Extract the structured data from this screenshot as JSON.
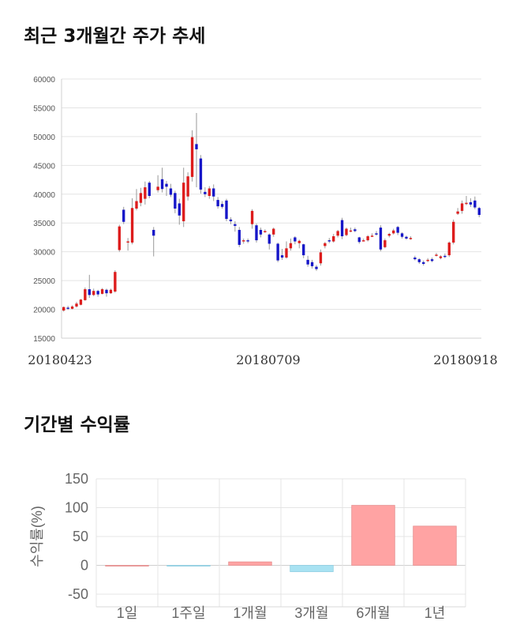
{
  "section1": {
    "title": "최근 3개월간 주가 추세"
  },
  "section2": {
    "title": "기간별 수익률"
  },
  "colors": {
    "up": "#dd1c1c",
    "down": "#1616c8",
    "pos_bar": "#ffa3a3",
    "neg_bar": "#a8e2f2",
    "grid": "#e4e4e4"
  },
  "chart_data": [
    {
      "type": "candlestick",
      "title": "최근 3개월간 주가 추세",
      "ylim": [
        15000,
        60000
      ],
      "y_ticks": [
        "60000",
        "55000",
        "50000",
        "45000",
        "40000",
        "35000",
        "30000",
        "25000",
        "20000",
        "15000"
      ],
      "x_ticks": [
        "20180423",
        "20180709",
        "20180918"
      ],
      "grid": true,
      "candles": [
        [
          19800,
          20400,
          19600,
          20500
        ],
        [
          20300,
          20200,
          19900,
          20600
        ],
        [
          20100,
          20500,
          20000,
          20700
        ],
        [
          20500,
          21000,
          20300,
          21300
        ],
        [
          20800,
          21700,
          20700,
          21800
        ],
        [
          21600,
          23500,
          21500,
          23800
        ],
        [
          23500,
          22500,
          22000,
          26000
        ],
        [
          22500,
          23200,
          22300,
          23600
        ],
        [
          23200,
          22600,
          22200,
          23400
        ],
        [
          22700,
          23500,
          22600,
          23700
        ],
        [
          23400,
          22800,
          22200,
          23600
        ],
        [
          22800,
          23400,
          22700,
          23600
        ],
        [
          23100,
          26500,
          22900,
          26800
        ],
        [
          30300,
          34400,
          30000,
          34700
        ],
        [
          37300,
          35200,
          34800,
          37800
        ],
        [
          31600,
          31800,
          30200,
          32400
        ],
        [
          31600,
          37600,
          31300,
          39300
        ],
        [
          37500,
          38800,
          37200,
          40900
        ],
        [
          38500,
          40200,
          37900,
          41100
        ],
        [
          39200,
          41200,
          38200,
          42200
        ],
        [
          42000,
          39700,
          39300,
          42300
        ],
        [
          33800,
          32800,
          29200,
          34300
        ],
        [
          40700,
          41300,
          40300,
          43300
        ],
        [
          42600,
          40900,
          40300,
          44600
        ],
        [
          41800,
          41300,
          39700,
          42300
        ],
        [
          41000,
          39900,
          39500,
          41800
        ],
        [
          40200,
          37500,
          36700,
          40600
        ],
        [
          38400,
          36300,
          34700,
          39200
        ],
        [
          35300,
          42000,
          34300,
          44600
        ],
        [
          39600,
          43100,
          38900,
          43800
        ],
        [
          43000,
          49900,
          42200,
          51100
        ],
        [
          48700,
          47800,
          41200,
          54100
        ],
        [
          46200,
          40800,
          40100,
          46800
        ],
        [
          40400,
          40000,
          39500,
          41200
        ],
        [
          39700,
          41000,
          39200,
          41400
        ],
        [
          41000,
          39600,
          38800,
          41700
        ],
        [
          39000,
          37900,
          37500,
          39500
        ],
        [
          38300,
          37800,
          37500,
          38800
        ],
        [
          38900,
          35700,
          35300,
          39200
        ],
        [
          35600,
          35300,
          34800,
          36000
        ],
        [
          34800,
          34500,
          33500,
          35300
        ],
        [
          33800,
          31200,
          30800,
          34300
        ],
        [
          31900,
          32000,
          31400,
          32300
        ],
        [
          32000,
          31800,
          31500,
          32300
        ],
        [
          34800,
          37100,
          34000,
          37400
        ],
        [
          34600,
          32000,
          31600,
          34900
        ],
        [
          33800,
          33000,
          32500,
          34200
        ],
        [
          33600,
          33600,
          33300,
          33900
        ],
        [
          33000,
          31400,
          30400,
          33200
        ],
        [
          33000,
          34000,
          32600,
          34200
        ],
        [
          31400,
          28500,
          28200,
          31600
        ],
        [
          29400,
          29000,
          28600,
          30500
        ],
        [
          29000,
          30600,
          28800,
          31800
        ],
        [
          30600,
          31500,
          30200,
          32300
        ],
        [
          32500,
          31800,
          31300,
          32700
        ],
        [
          31500,
          31900,
          30600,
          32100
        ],
        [
          31300,
          29400,
          28900,
          31400
        ],
        [
          28600,
          27800,
          27400,
          29300
        ],
        [
          28200,
          27500,
          27100,
          28600
        ],
        [
          27400,
          27000,
          26700,
          27700
        ],
        [
          28000,
          29900,
          27600,
          30400
        ],
        [
          31000,
          31500,
          30600,
          31700
        ],
        [
          32000,
          31800,
          31500,
          32400
        ],
        [
          31800,
          32700,
          31600,
          33100
        ],
        [
          32800,
          33600,
          32500,
          33800
        ],
        [
          35500,
          32700,
          32200,
          35900
        ],
        [
          32900,
          34000,
          32700,
          34200
        ],
        [
          33700,
          33700,
          33400,
          34200
        ],
        [
          33900,
          33600,
          33400,
          34200
        ],
        [
          32500,
          31700,
          31400,
          32600
        ],
        [
          32000,
          32000,
          31800,
          32300
        ],
        [
          32000,
          32700,
          31800,
          32900
        ],
        [
          32800,
          32800,
          32600,
          33200
        ],
        [
          33200,
          33000,
          32800,
          33600
        ],
        [
          34200,
          30400,
          30100,
          34600
        ],
        [
          30800,
          32000,
          30600,
          32300
        ],
        [
          32800,
          33100,
          32500,
          33300
        ],
        [
          33200,
          33700,
          33000,
          34000
        ],
        [
          34300,
          33300,
          32900,
          34500
        ],
        [
          33200,
          32600,
          32300,
          33400
        ],
        [
          32600,
          32300,
          32100,
          32800
        ],
        [
          32400,
          32400,
          32100,
          32700
        ],
        [
          29000,
          28700,
          28500,
          29300
        ],
        [
          28700,
          28200,
          27900,
          28900
        ],
        [
          28200,
          27900,
          27600,
          28500
        ],
        [
          28500,
          28600,
          28200,
          28900
        ],
        [
          28700,
          28400,
          28200,
          29000
        ],
        [
          29500,
          29500,
          29200,
          29800
        ],
        [
          28900,
          29200,
          28700,
          29400
        ],
        [
          29300,
          29200,
          28900,
          29700
        ],
        [
          29400,
          31600,
          29100,
          31800
        ],
        [
          31600,
          35200,
          31300,
          35600
        ],
        [
          36600,
          37000,
          36400,
          37600
        ],
        [
          37100,
          38400,
          36600,
          38900
        ],
        [
          38400,
          38500,
          38100,
          39700
        ],
        [
          38600,
          38200,
          37800,
          39300
        ],
        [
          38900,
          37700,
          37400,
          39600
        ],
        [
          37600,
          36400,
          36000,
          37800
        ]
      ]
    },
    {
      "type": "bar",
      "title": "기간별 수익률",
      "ylabel": "수익률(%)",
      "ylim": [
        -50,
        150
      ],
      "y_ticks": [
        "150",
        "100",
        "50",
        "0",
        "-50"
      ],
      "categories": [
        "1일",
        "1주일",
        "1개월",
        "3개월",
        "6개월",
        "1년"
      ],
      "values": [
        0,
        -0.5,
        6,
        -11,
        104,
        68
      ]
    }
  ]
}
